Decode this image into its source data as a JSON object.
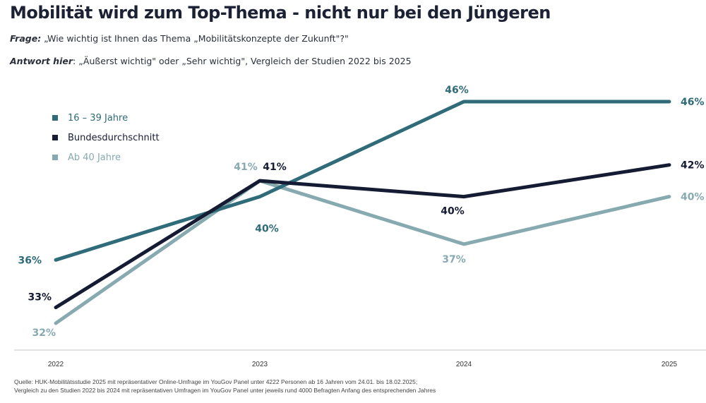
{
  "header": {
    "title": "Mobilität wird zum Top-Thema - nicht nur bei den Jüngeren",
    "question_label": "Frage:",
    "question_text": " „Wie wichtig ist Ihnen das Thema „Mobilitätskonzepte der Zukunft\"?\"",
    "answer_label": "Antwort hier",
    "answer_text": ": „Äußerst wichtig\" oder „Sehr wichtig\", Vergleich der Studien 2022 bis 2025"
  },
  "footer": {
    "line1": "Quelle: HUK-Mobilitätsstudie 2025 mit repräsentativer Online-Umfrage im YouGov Panel unter 4222 Personen ab 16 Jahren vom 24.01. bis 18.02.2025;",
    "line2": "Vergleich zu den Studien 2022 bis 2024 mit repräsentativen Umfragen im YouGov Panel unter jeweils rund 4000 Befragten Anfang des entsprechenden Jahres"
  },
  "chart_data": {
    "type": "line",
    "title": "Mobilität wird zum Top-Thema - nicht nur bei den Jüngeren",
    "xlabel": "",
    "ylabel": "",
    "categories": [
      "2022",
      "2023",
      "2024",
      "2025"
    ],
    "ylim": [
      32,
      46
    ],
    "grid": false,
    "legend_position": "top-left",
    "unit": "%",
    "series": [
      {
        "name": "16 – 39 Jahre",
        "color": "#2f6b78",
        "values": [
          36,
          40,
          46,
          46
        ]
      },
      {
        "name": "Bundesdurchschnitt",
        "color": "#151b33",
        "values": [
          33,
          41,
          40,
          42
        ]
      },
      {
        "name": "Ab 40 Jahre",
        "color": "#86aab0",
        "values": [
          32,
          41,
          37,
          40
        ]
      }
    ]
  }
}
